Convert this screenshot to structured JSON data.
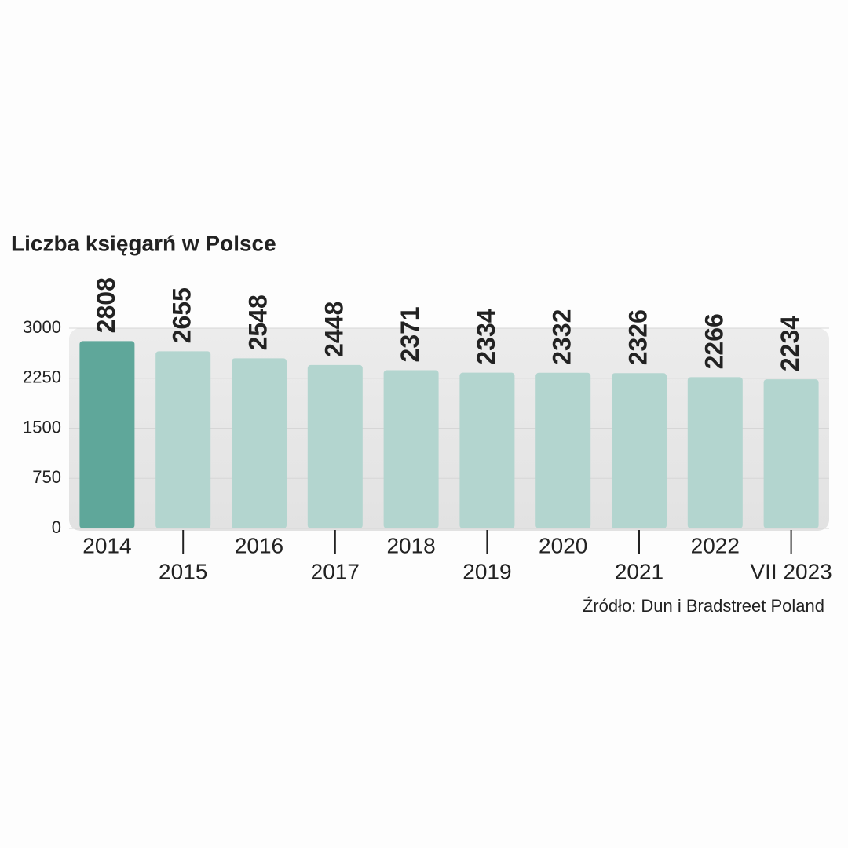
{
  "chart_data": {
    "type": "bar",
    "title": "Liczba księgarń w Polsce",
    "categories": [
      "2014",
      "2015",
      "2016",
      "2017",
      "2018",
      "2019",
      "2020",
      "2021",
      "2022",
      "VII 2023"
    ],
    "values": [
      2808,
      2655,
      2548,
      2448,
      2371,
      2334,
      2332,
      2326,
      2266,
      2234
    ],
    "colors": [
      "#5fa79a",
      "#b3d5cf",
      "#b3d5cf",
      "#b3d5cf",
      "#b3d5cf",
      "#b3d5cf",
      "#b3d5cf",
      "#b3d5cf",
      "#b3d5cf",
      "#b3d5cf"
    ],
    "ylim": [
      0,
      3000
    ],
    "yticks": [
      0,
      750,
      1500,
      2250,
      3000
    ],
    "grid": true,
    "source": "Źródło: Dun i Bradstreet Poland"
  }
}
